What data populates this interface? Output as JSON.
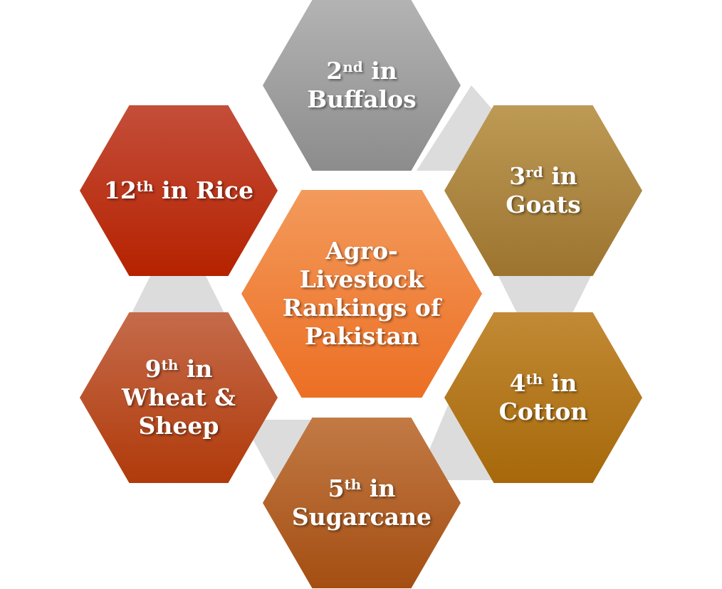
{
  "center": {
    "lines": [
      "Agro-",
      "Livestock",
      "Rankings of",
      "Pakistan"
    ],
    "gradient": [
      "#f39a5c",
      "#ec6f23"
    ]
  },
  "hexagons": [
    {
      "id": "buffalos",
      "rank": "2",
      "suffix": "nd",
      "after": " in",
      "rest": "Buffalos",
      "gradient": [
        "#b3b3b3",
        "#8c8c8c"
      ]
    },
    {
      "id": "goats",
      "rank": "3",
      "suffix": "rd",
      "after": " in",
      "rest": "Goats",
      "gradient": [
        "#bd9a55",
        "#9c7430"
      ]
    },
    {
      "id": "cotton",
      "rank": "4",
      "suffix": "th",
      "after": " in",
      "rest": "Cotton",
      "gradient": [
        "#c28a35",
        "#a6680a"
      ]
    },
    {
      "id": "sugarcane",
      "rank": "5",
      "suffix": "th",
      "after": " in",
      "rest": "Sugarcane",
      "gradient": [
        "#c27a45",
        "#a44e12"
      ]
    },
    {
      "id": "wheat-sheep",
      "rank": "9",
      "suffix": "th",
      "after": " in",
      "rest": "Wheat &",
      "rest2": "Sheep",
      "gradient": [
        "#c56b4b",
        "#b03a0a"
      ]
    },
    {
      "id": "rice",
      "rank": "12",
      "suffix": "th",
      "after": " in Rice",
      "rest": "",
      "gradient": [
        "#c44e3a",
        "#b52200"
      ]
    }
  ]
}
